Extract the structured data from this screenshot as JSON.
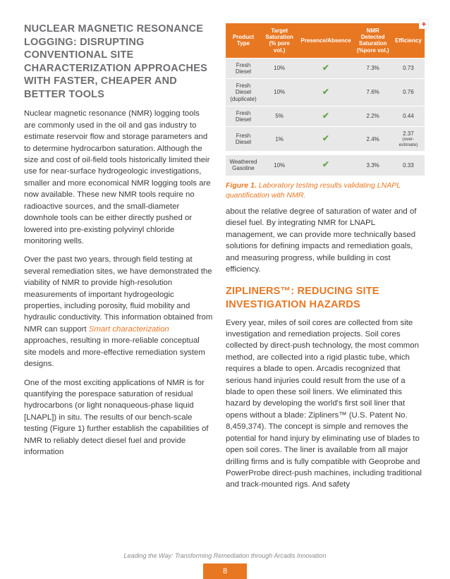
{
  "colors": {
    "accent": "#e87722",
    "gray_heading": "#6d6e71",
    "body": "#3b3b3b",
    "check": "#6aa84f",
    "row_bg": "#e8e8e8"
  },
  "left": {
    "heading": "NUCLEAR MAGNETIC RESONANCE LOGGING: DISRUPTING CONVENTIONAL SITE CHARACTERIZATION APPROACHES WITH FASTER, CHEAPER AND BETTER TOOLS",
    "p1a": "Nuclear magnetic resonance (NMR) logging tools are commonly used in the oil and gas industry to estimate reservoir flow and storage parameters and to determine hydrocarbon saturation. Although the size and cost of oil-field tools historically limited their use for near-surface hydrogeologic investigations, smaller and more economical NMR logging tools are now available. These new NMR tools require no radioactive sources, and the small-diameter downhole tools can be either directly pushed or lowered into pre-existing polyvinyl chloride monitoring wells.",
    "p2a": "Over the past two years, through field testing at several remediation sites, we have demonstrated the viability of NMR to provide high-resolution measurements of important hydrogeologic properties, including porosity, fluid mobility and hydraulic conductivity. This information obtained from NMR can support ",
    "p2link": "Smart characterization",
    "p2b": " approaches, resulting in more-reliable conceptual site models and more-effective remediation system designs.",
    "p3": "One of the most exciting applications of NMR is for quantifying the porespace saturation of residual hydrocarbons (or light nonaqueous-phase liquid [LNAPL]) in situ. The results of our bench-scale testing (Figure 1) further establish the capabilities of NMR to reliably detect diesel fuel and provide information"
  },
  "right": {
    "table": {
      "headers": [
        "Product Type",
        "Target Saturation (% pore vol.)",
        "Presence/Absence",
        "NMR Detected Saturation (%pore vol.)",
        "Efficiency"
      ],
      "rows": [
        {
          "product": "Fresh Diesel",
          "target": "10%",
          "presence": true,
          "detected": "7.3%",
          "eff": "0.73",
          "note": ""
        },
        {
          "product": "Fresh Diesel (duplicate)",
          "target": "10%",
          "presence": true,
          "detected": "7.6%",
          "eff": "0.76",
          "note": ""
        },
        {
          "product": "Fresh Diesel",
          "target": "5%",
          "presence": true,
          "detected": "2.2%",
          "eff": "0.44",
          "note": ""
        },
        {
          "product": "Fresh Diesel",
          "target": "1%",
          "presence": true,
          "detected": "2.4%",
          "eff": "2.37",
          "note": "(over-estimate)"
        }
      ],
      "row2": {
        "product": "Weathered Gasoline",
        "target": "10%",
        "presence": true,
        "detected": "3.3%",
        "eff": "0.33",
        "note": ""
      }
    },
    "fig_label": "Figure 1.",
    "fig_text": " Laboratory testing results validating LNAPL quantification with NMR.",
    "p1": "about the relative degree of saturation of water and of diesel fuel. By integrating NMR for LNAPL management, we can provide more technically based solutions for defining impacts and remediation goals, and measuring progress, while building in cost efficiency.",
    "h2": "ZIPLINERS™: REDUCING SITE INVESTIGATION HAZARDS",
    "p2": "Every year, miles of soil cores are collected from site investigation and remediation projects. Soil cores collected by direct-push technology, the most common method, are collected into a rigid plastic tube, which requires a blade to open. Arcadis recognized that serious hand injuries could result from the use of a blade to open these soil liners. We eliminated this hazard by developing the world's first soil liner that opens without a blade: Zipliners™ (U.S. Patent No. 8,459,374). The concept is simple and removes the potential for hand injury by eliminating use of blades to open soil cores. The liner is available from all major drilling firms and is fully compatible with Geoprobe and PowerProbe direct-push machines, including traditional and track-mounted rigs. And safety"
  },
  "footer": {
    "text": "Leading the Way: Transforming Remediation through Arcadis Innovation",
    "page": "8"
  }
}
